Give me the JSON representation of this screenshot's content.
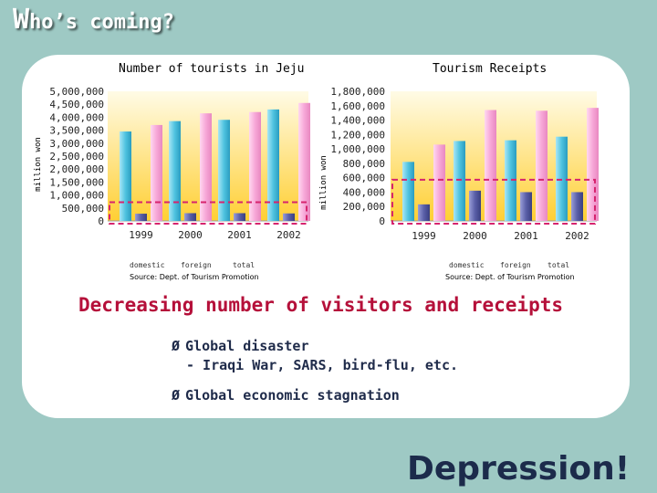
{
  "slide": {
    "title_first": "W",
    "title_rest": "ho’s coming?",
    "headline": "Decreasing number of visitors and receipts",
    "bullets": [
      {
        "arrow": "Ø",
        "text": "Global disaster"
      },
      {
        "arrow": "",
        "text": "- Iraqi War, SARS, bird-flu, etc."
      },
      {
        "arrow": "Ø",
        "text": "Global economic stagnation"
      }
    ],
    "footer": "Depression!"
  },
  "chart_data": [
    {
      "type": "bar",
      "title": "Number of tourists in Jeju",
      "ylabel": "million won",
      "categories": [
        "1999",
        "2000",
        "2001",
        "2002"
      ],
      "ylim": [
        0,
        5000000
      ],
      "yticks": [
        "0",
        "500,000",
        "1,000,000",
        "1,500,000",
        "2,000,000",
        "2,500,000",
        "3,000,000",
        "3,500,000",
        "4,000,000",
        "4,500,000",
        "5,000,000"
      ],
      "series": [
        {
          "name": "domestic",
          "color": "#4fc3e0",
          "values": [
            3450000,
            3850000,
            3900000,
            4300000
          ]
        },
        {
          "name": "foreign",
          "color": "#5a5fa8",
          "values": [
            280000,
            300000,
            300000,
            290000
          ]
        },
        {
          "name": "total",
          "color": "#f7a8d8",
          "values": [
            3700000,
            4150000,
            4200000,
            4550000
          ]
        }
      ],
      "source": "Source: Dept. of Tourism Promotion",
      "highlight": "dashed box around foreign bars"
    },
    {
      "type": "bar",
      "title": "Tourism Receipts",
      "ylabel": "million won",
      "categories": [
        "1999",
        "2000",
        "2001",
        "2002"
      ],
      "ylim": [
        0,
        1800000
      ],
      "yticks": [
        "0",
        "200,000",
        "400,000",
        "600,000",
        "800,000",
        "1,000,000",
        "1,200,000",
        "1,400,000",
        "1,600,000",
        "1,800,000"
      ],
      "series": [
        {
          "name": "domestic",
          "color": "#4fc3e0",
          "values": [
            820000,
            1110000,
            1120000,
            1170000
          ]
        },
        {
          "name": "foreign",
          "color": "#5a5fa8",
          "values": [
            230000,
            420000,
            400000,
            400000
          ]
        },
        {
          "name": "total",
          "color": "#f7a8d8",
          "values": [
            1060000,
            1540000,
            1530000,
            1570000
          ]
        }
      ],
      "source": "Source: Dept. of Tourism Promotion",
      "highlight": "dashed box around foreign bars"
    }
  ]
}
